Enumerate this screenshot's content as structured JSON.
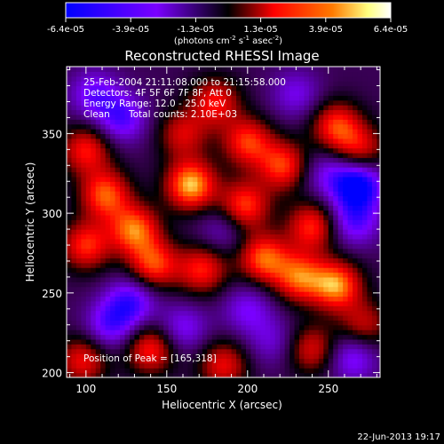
{
  "colorbar": {
    "ticks": [
      "-6.4e-05",
      "-3.9e-05",
      "-1.3e-05",
      "1.3e-05",
      "3.9e-05",
      "6.4e-05"
    ],
    "units_prefix": "(photons cm",
    "units_sup1": "-2",
    "units_mid": " s",
    "units_sup2": "-1",
    "units_mid2": " asec",
    "units_sup3": "-2",
    "units_suffix": ")",
    "colors": [
      "#0000ff",
      "#7a00ff",
      "#ff0000",
      "#ff7a00",
      "#ffff80",
      "#ffffff"
    ]
  },
  "annotations": {
    "time": "25-Feb-2004 21:11:08.000 to 21:15:58.000",
    "detectors": "Detectors: 4F 5F 6F 7F 8F, Att 0",
    "energy": "Energy Range: 12.0 - 25.0 keV",
    "method": "Clean",
    "counts": "Total counts: 2.10E+03",
    "peak": "Position of Peak = [165,318]"
  },
  "footer": {
    "date": "22-Jun-2013 19:17"
  },
  "chart_data": {
    "type": "heatmap",
    "title": "Reconstructed RHESSI Image",
    "xlabel": "Heliocentric X (arcsec)",
    "ylabel": "Heliocentric Y (arcsec)",
    "xlim": [
      88,
      282
    ],
    "ylim": [
      197,
      392
    ],
    "xticks": [
      100,
      150,
      200,
      250
    ],
    "yticks": [
      200,
      250,
      300,
      350
    ],
    "zlim": [
      -6.4e-05,
      6.4e-05
    ],
    "peak": [
      165,
      318
    ],
    "blobs": [
      {
        "x": 100,
        "y": 340,
        "v": 4.2e-05
      },
      {
        "x": 112,
        "y": 312,
        "v": 5.1e-05
      },
      {
        "x": 100,
        "y": 280,
        "v": 4.5e-05
      },
      {
        "x": 98,
        "y": 208,
        "v": 3.9e-05
      },
      {
        "x": 122,
        "y": 360,
        "v": -3.6e-05
      },
      {
        "x": 130,
        "y": 290,
        "v": 5.4e-05
      },
      {
        "x": 142,
        "y": 268,
        "v": 4.8e-05
      },
      {
        "x": 128,
        "y": 245,
        "v": -3.8e-05
      },
      {
        "x": 140,
        "y": 215,
        "v": 4.4e-05
      },
      {
        "x": 165,
        "y": 318,
        "v": 6.4e-05
      },
      {
        "x": 160,
        "y": 350,
        "v": 3.4e-05
      },
      {
        "x": 172,
        "y": 265,
        "v": 4.3e-05
      },
      {
        "x": 160,
        "y": 228,
        "v": -2.8e-05
      },
      {
        "x": 185,
        "y": 205,
        "v": 3.8e-05
      },
      {
        "x": 200,
        "y": 345,
        "v": 4.6e-05
      },
      {
        "x": 198,
        "y": 305,
        "v": 4.9e-05
      },
      {
        "x": 210,
        "y": 272,
        "v": 5.2e-05
      },
      {
        "x": 200,
        "y": 240,
        "v": -2.6e-05
      },
      {
        "x": 222,
        "y": 330,
        "v": 4.7e-05
      },
      {
        "x": 240,
        "y": 292,
        "v": 4.5e-05
      },
      {
        "x": 232,
        "y": 260,
        "v": 5e-05
      },
      {
        "x": 255,
        "y": 255,
        "v": 5.8e-05
      },
      {
        "x": 255,
        "y": 355,
        "v": 4.6e-05
      },
      {
        "x": 270,
        "y": 340,
        "v": 3.6e-05
      },
      {
        "x": 268,
        "y": 318,
        "v": -6e-05
      },
      {
        "x": 266,
        "y": 295,
        "v": -3.4e-05
      },
      {
        "x": 272,
        "y": 230,
        "v": 3.2e-05
      },
      {
        "x": 265,
        "y": 210,
        "v": -3.2e-05
      },
      {
        "x": 240,
        "y": 215,
        "v": 3.6e-05
      },
      {
        "x": 215,
        "y": 220,
        "v": -2e-05
      },
      {
        "x": 180,
        "y": 370,
        "v": 4e-05
      },
      {
        "x": 230,
        "y": 375,
        "v": -2.4e-05
      },
      {
        "x": 105,
        "y": 375,
        "v": -3e-05
      },
      {
        "x": 115,
        "y": 230,
        "v": -3.4e-05
      },
      {
        "x": 248,
        "y": 325,
        "v": -2.2e-05
      },
      {
        "x": 185,
        "y": 290,
        "v": -2e-05
      }
    ]
  }
}
